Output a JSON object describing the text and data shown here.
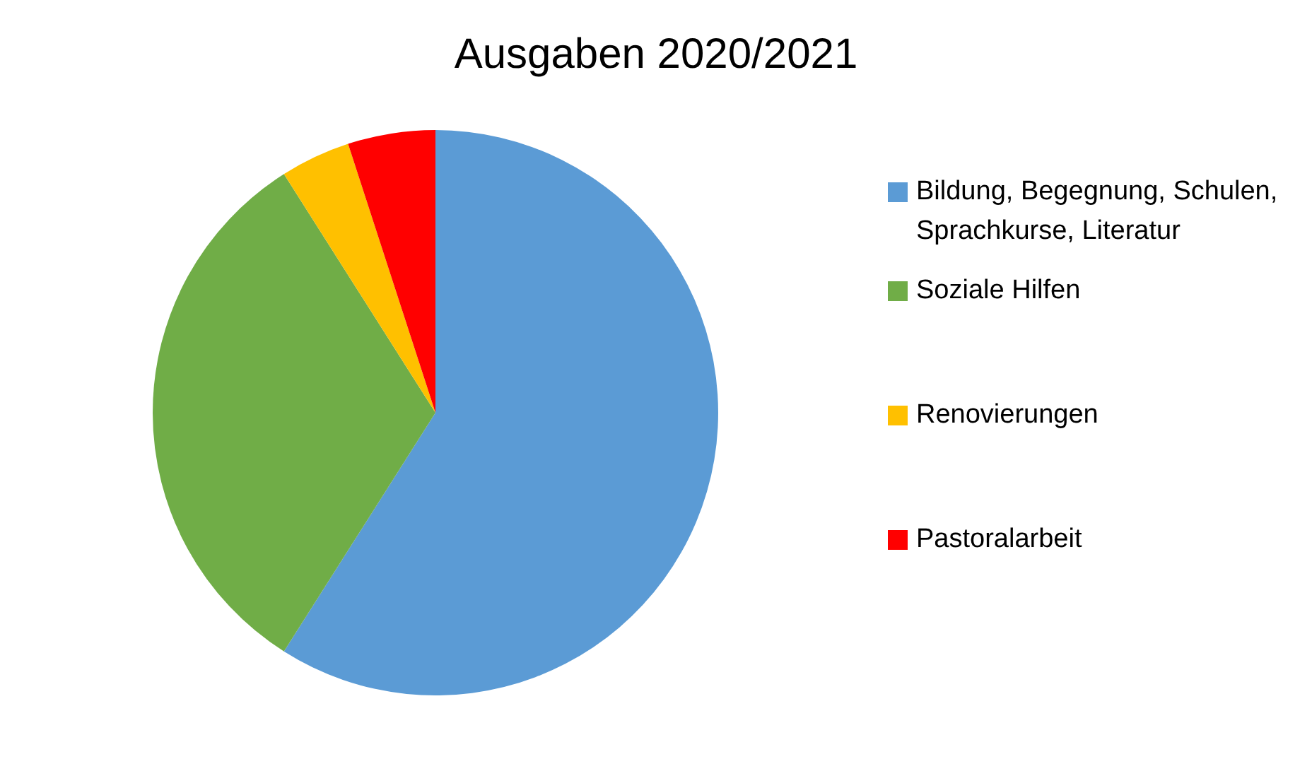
{
  "chart_data": {
    "type": "pie",
    "title": "Ausgaben 2020/2021",
    "categories": [
      "Bildung, Begegnung, Schulen, Sprachkurse, Literatur",
      "Soziale Hilfen",
      "Renovierungen",
      "Pastoralarbeit"
    ],
    "values": [
      59,
      32,
      4,
      5
    ],
    "colors": [
      "#5b9bd5",
      "#70ad47",
      "#ffc000",
      "#ff0000"
    ],
    "legend": "right"
  }
}
